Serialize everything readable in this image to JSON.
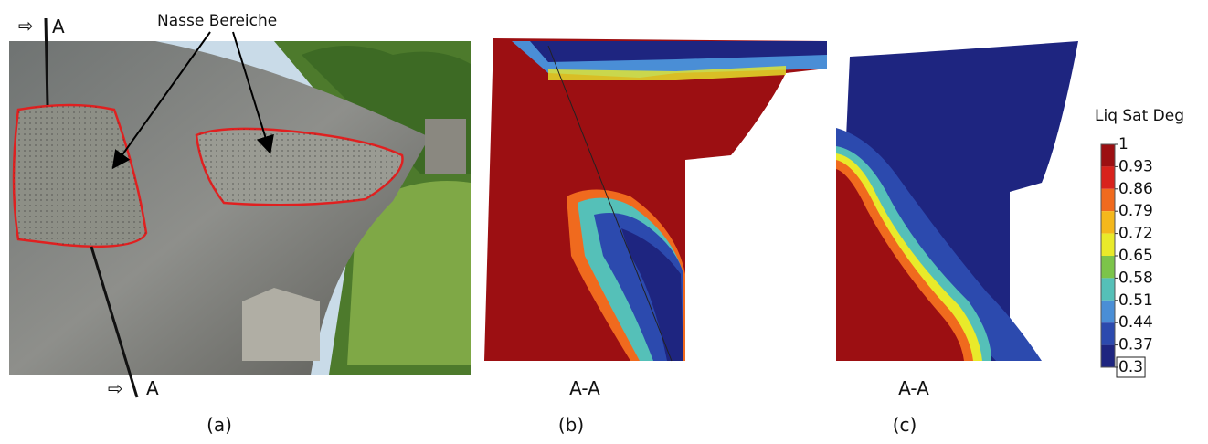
{
  "section_a": {
    "marker_top": "A",
    "marker_bottom": "A",
    "annotation": "Nasse Bereiche",
    "caption": "(a)"
  },
  "section_b": {
    "section_label": "A-A",
    "caption": "(b)"
  },
  "section_c": {
    "section_label": "A-A",
    "caption": "(c)"
  },
  "colorbar": {
    "title": "Liq Sat Deg",
    "ticks": [
      1,
      0.93,
      0.86,
      0.79,
      0.72,
      0.65,
      0.58,
      0.51,
      0.44,
      0.37,
      0.3
    ],
    "colors": [
      "#9c0f12",
      "#d8221c",
      "#f06a1e",
      "#f4b81c",
      "#e9ea2a",
      "#7cc44a",
      "#55c0b8",
      "#4a8ed6",
      "#2c4aae",
      "#1e2580"
    ]
  }
}
